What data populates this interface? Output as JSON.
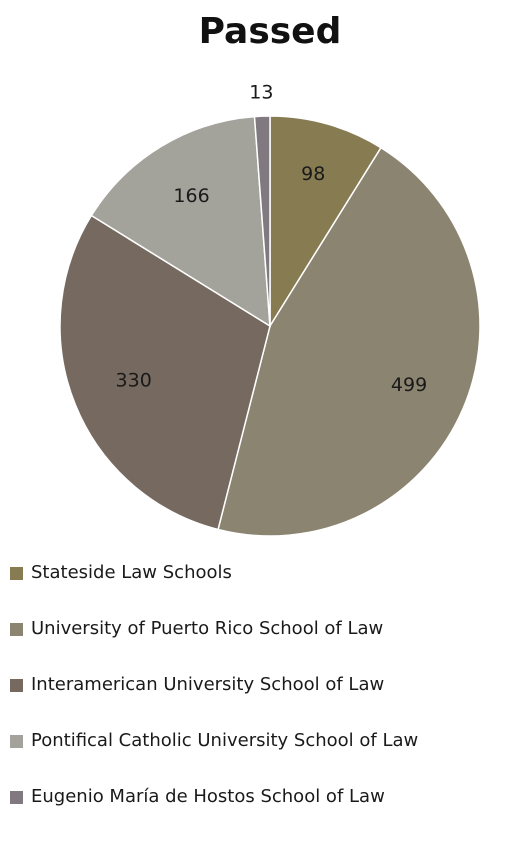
{
  "chart_data": {
    "type": "pie",
    "title": "Passed",
    "categories": [
      "Stateside Law Schools",
      "University of Puerto Rico School of Law",
      "Interamerican University School of Law",
      "Pontifical Catholic University School of Law",
      "Eugenio María de Hostos School of Law"
    ],
    "values": [
      98,
      499,
      330,
      166,
      13
    ],
    "colors": [
      "#877b52",
      "#8b8470",
      "#766a60",
      "#a3a39b",
      "#807a80"
    ],
    "legend_placement": "bottom",
    "data_labels": [
      "98",
      "499",
      "330",
      "166",
      "13"
    ]
  }
}
